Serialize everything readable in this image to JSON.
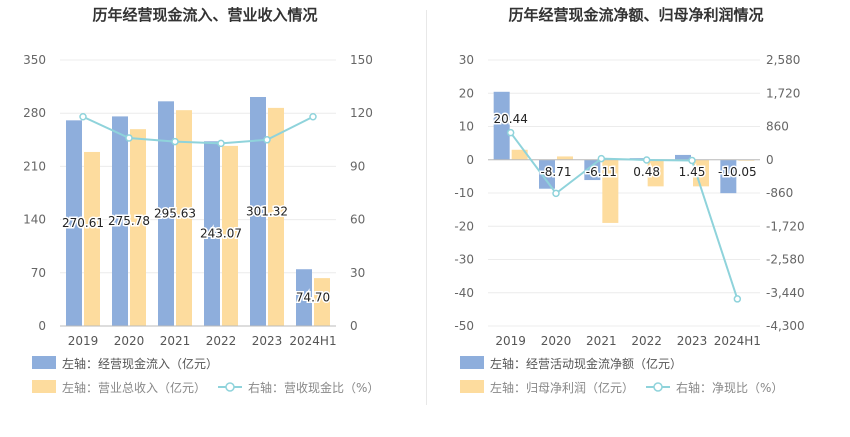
{
  "chart_data": [
    {
      "type": "bar",
      "title": "历年经营现金流入、营业收入情况",
      "categories": [
        "2019",
        "2020",
        "2021",
        "2022",
        "2023",
        "2024H1"
      ],
      "left_axis": {
        "ticks": [
          "0",
          "70",
          "140",
          "210",
          "280",
          "350"
        ],
        "ylim": [
          0,
          350
        ]
      },
      "right_axis": {
        "ticks": [
          "0",
          "30",
          "60",
          "90",
          "120",
          "150"
        ],
        "ylim": [
          0,
          150
        ]
      },
      "series": [
        {
          "name": "左轴：经营现金流入（亿元）",
          "type": "bar",
          "axis": "left",
          "color": "#8eaedc",
          "values": [
            270.61,
            275.78,
            295.63,
            243.07,
            301.32,
            74.7
          ],
          "labels": [
            "270.61",
            "275.78",
            "295.63",
            "243.07",
            "301.32",
            "74.70"
          ]
        },
        {
          "name": "左轴：营业总收入（亿元）",
          "type": "bar",
          "axis": "left",
          "color": "#fddc9e",
          "values": [
            229,
            259,
            284,
            237,
            287,
            63
          ]
        },
        {
          "name": "右轴：营收现金比（%）",
          "type": "line",
          "axis": "right",
          "color": "#8fd3db",
          "values": [
            118,
            106,
            104,
            103,
            105,
            118
          ]
        }
      ],
      "legend": [
        "左轴：经营现金流入（亿元）",
        "左轴：营业总收入（亿元）",
        "右轴：营收现金比（%）"
      ]
    },
    {
      "type": "bar",
      "title": "历年经营现金流净额、归母净利润情况",
      "categories": [
        "2019",
        "2020",
        "2021",
        "2022",
        "2023",
        "2024H1"
      ],
      "left_axis": {
        "ticks": [
          "-50",
          "-40",
          "-30",
          "-20",
          "-10",
          "0",
          "10",
          "20",
          "30"
        ],
        "ylim": [
          -50,
          30
        ]
      },
      "right_axis": {
        "ticks": [
          "-4,300",
          "-3,440",
          "-2,580",
          "-1,720",
          "-860",
          "0",
          "860",
          "1,720",
          "2,580"
        ],
        "ylim": [
          -4300,
          2580
        ]
      },
      "series": [
        {
          "name": "左轴：经营活动现金流净额（亿元）",
          "type": "bar",
          "axis": "left",
          "color": "#8eaedc",
          "values": [
            20.44,
            -8.71,
            -6.11,
            0.48,
            1.45,
            -10.05
          ],
          "labels": [
            "20.44",
            "-8.71",
            "-6.11",
            "0.48",
            "1.45",
            "-10.05"
          ]
        },
        {
          "name": "左轴：归母净利润（亿元）",
          "type": "bar",
          "axis": "left",
          "color": "#fddc9e",
          "values": [
            3.0,
            1.0,
            -19.0,
            -8.0,
            -8.0,
            -0.3
          ]
        },
        {
          "name": "右轴：净现比（%）",
          "type": "line",
          "axis": "right",
          "color": "#8fd3db",
          "values": [
            700,
            -870,
            30,
            -6,
            -18,
            -3600
          ]
        }
      ],
      "legend": [
        "左轴：经营活动现金流净额（亿元）",
        "左轴：归母净利润（亿元）",
        "右轴：净现比（%）"
      ]
    }
  ]
}
